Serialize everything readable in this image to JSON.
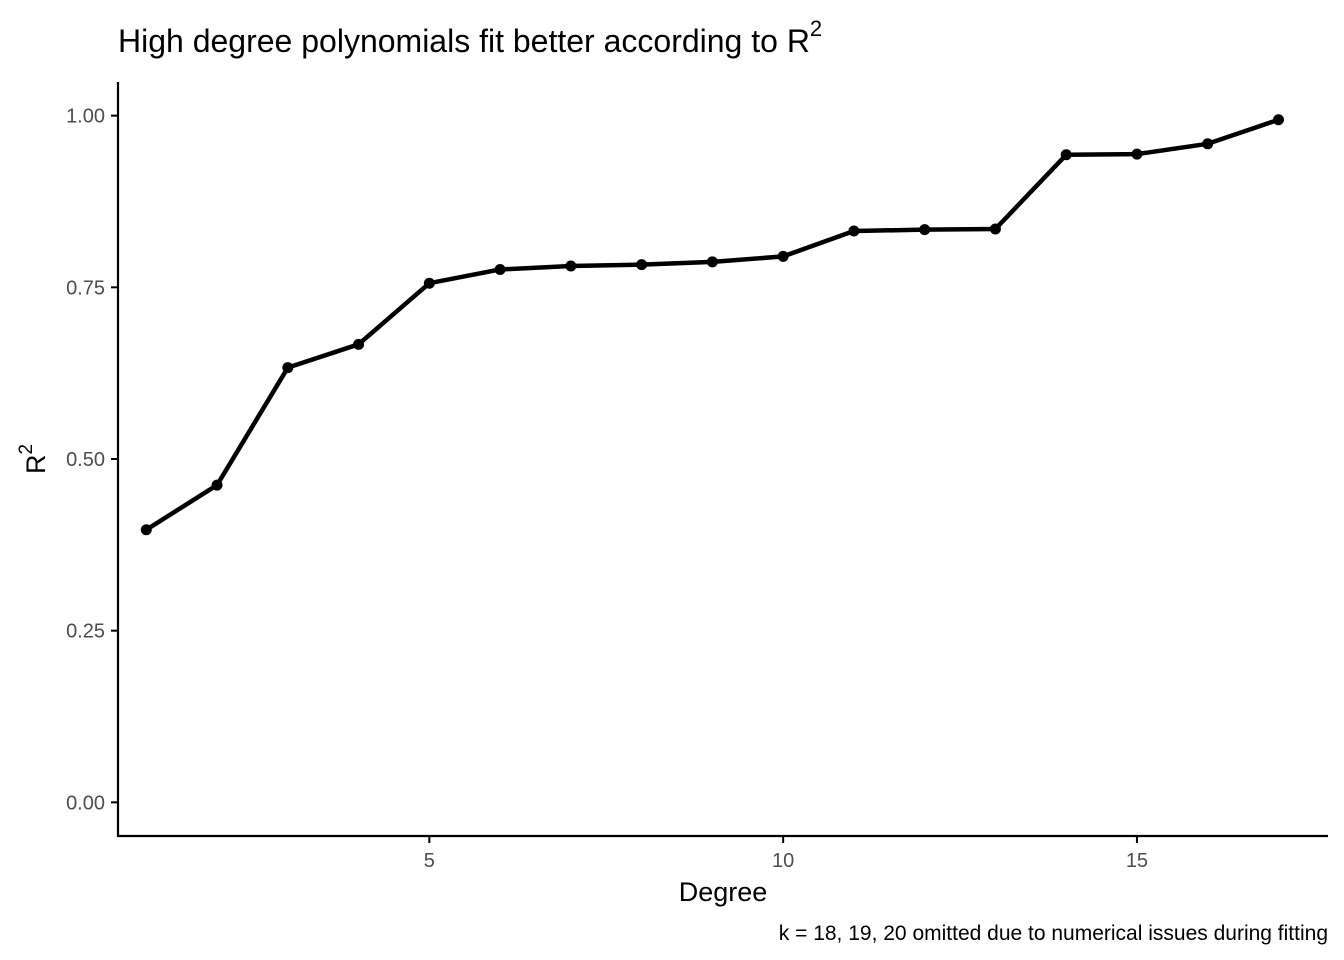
{
  "chart_data": {
    "type": "line",
    "title": "High degree polynomials fit better according to R",
    "title_superscript": "2",
    "xlabel": "Degree",
    "ylabel": "R",
    "ylabel_superscript": "2",
    "caption": "k = 18, 19, 20 omitted due to numerical issues during fitting",
    "x": [
      1,
      2,
      3,
      4,
      5,
      6,
      7,
      8,
      9,
      10,
      11,
      12,
      13,
      14,
      15,
      16,
      17
    ],
    "y": [
      0.397,
      0.462,
      0.633,
      0.667,
      0.756,
      0.776,
      0.781,
      0.783,
      0.787,
      0.795,
      0.832,
      0.834,
      0.835,
      0.943,
      0.944,
      0.959,
      0.994
    ],
    "xlim": [
      0.6,
      17.7
    ],
    "ylim": [
      -0.049,
      1.049
    ],
    "x_ticks": [
      5,
      10,
      15
    ],
    "x_tick_labels": [
      "5",
      "10",
      "15"
    ],
    "y_ticks": [
      0,
      0.25,
      0.5,
      0.75,
      1.0
    ],
    "y_tick_labels": [
      "0.00",
      "0.25",
      "0.50",
      "0.75",
      "1.00"
    ],
    "grid": false,
    "legend": "none",
    "colors": {
      "line": "#000000",
      "point": "#000000",
      "axis": "#000000",
      "tick_label": "#4d4d4d",
      "background": "#ffffff"
    }
  }
}
